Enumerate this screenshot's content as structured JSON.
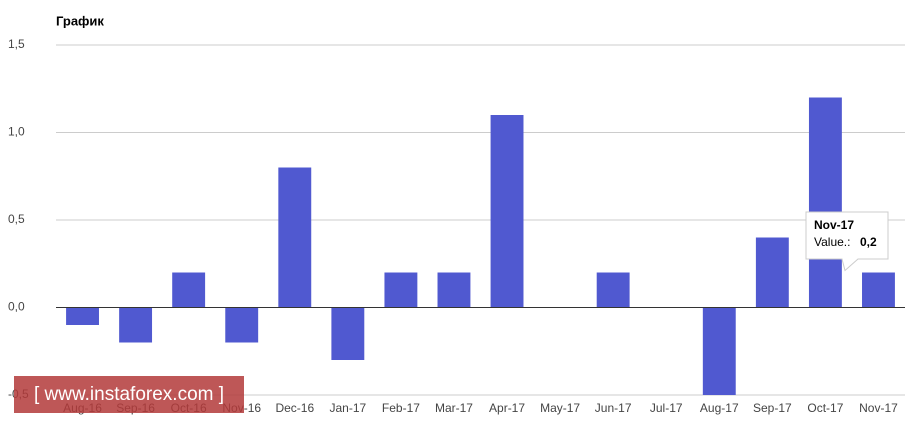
{
  "chart_data": {
    "type": "bar",
    "title": "График",
    "categories": [
      "Aug-16",
      "Sep-16",
      "Oct-16",
      "Nov-16",
      "Dec-16",
      "Jan-17",
      "Feb-17",
      "Mar-17",
      "Apr-17",
      "May-17",
      "Jun-17",
      "Jul-17",
      "Aug-17",
      "Sep-17",
      "Oct-17",
      "Nov-17"
    ],
    "values": [
      -0.1,
      -0.2,
      0.2,
      -0.2,
      0.8,
      -0.3,
      0.2,
      0.2,
      1.1,
      0,
      0.2,
      0,
      -0.5,
      0.4,
      1.2,
      0.2
    ],
    "color": "#5059d0",
    "ylim": [
      -0.5,
      1.5
    ],
    "yticks": [
      {
        "value": -0.5,
        "label": "-0,5"
      },
      {
        "value": 0,
        "label": "0,0"
      },
      {
        "value": 0.5,
        "label": "0,5"
      },
      {
        "value": 1,
        "label": "1,0"
      },
      {
        "value": 1.5,
        "label": "1,5"
      }
    ],
    "grid": true,
    "tooltip": {
      "label": "Value.:",
      "text": "0,2"
    },
    "watermark": "[ www.instaforex.com ]"
  }
}
